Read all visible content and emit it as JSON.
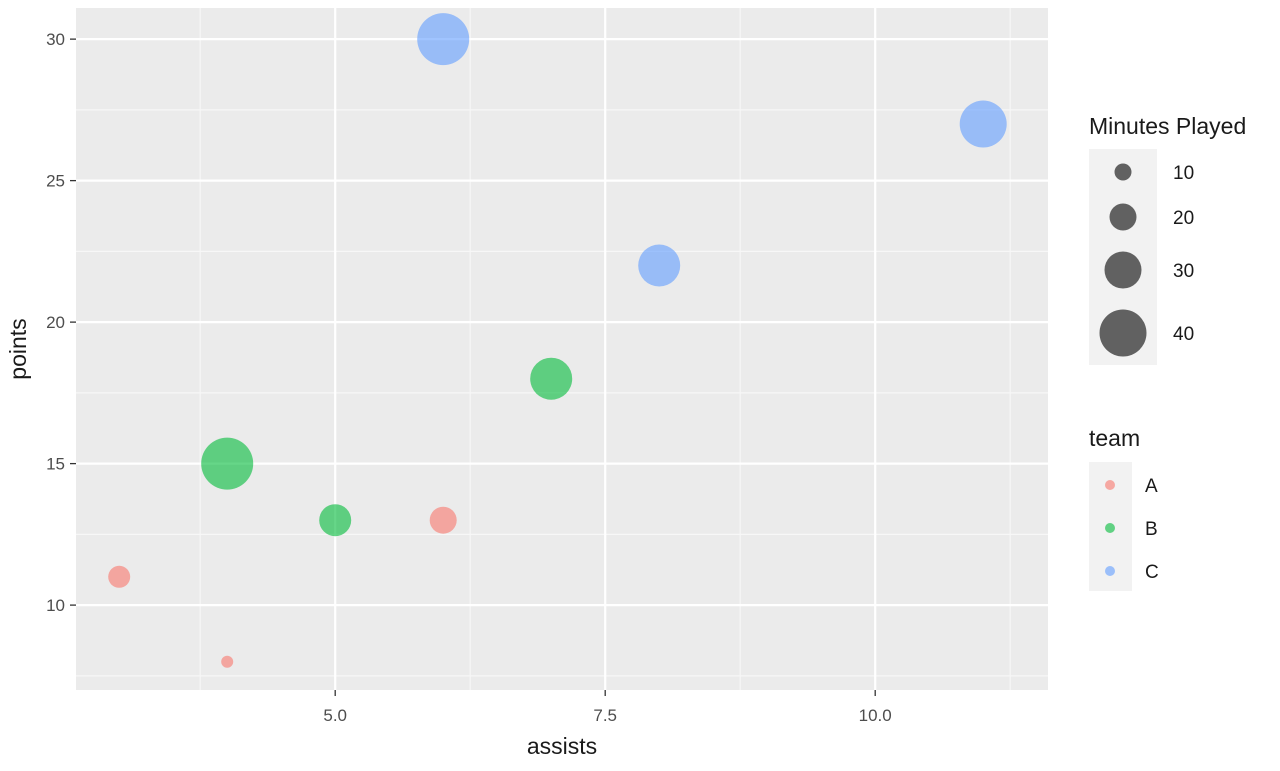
{
  "chart_data": {
    "type": "scatter",
    "xlabel": "assists",
    "ylabel": "points",
    "xlim": [
      2.6,
      11.6
    ],
    "ylim": [
      7,
      31.1
    ],
    "x_ticks": [
      5.0,
      7.5,
      10.0
    ],
    "x_tick_labels": [
      "5.0",
      "7.5",
      "10.0"
    ],
    "x_minor_ticks": [
      3.75,
      6.25,
      8.75,
      11.25
    ],
    "y_ticks": [
      10,
      15,
      20,
      25,
      30
    ],
    "y_tick_labels": [
      "10",
      "15",
      "20",
      "25",
      "30"
    ],
    "y_minor_ticks": [
      7.5,
      12.5,
      17.5,
      22.5,
      27.5
    ],
    "grid": true,
    "panel_background": "#ebebeb",
    "point_alpha": 0.6,
    "size_legend": {
      "title": "Minutes Played",
      "breaks": [
        10,
        20,
        30,
        40
      ],
      "labels": [
        "10",
        "20",
        "30",
        "40"
      ],
      "range": [
        5,
        45
      ]
    },
    "color_legend": {
      "title": "team",
      "entries": [
        {
          "label": "A",
          "color": "#F8766D"
        },
        {
          "label": "B",
          "color": "#00BA38"
        },
        {
          "label": "C",
          "color": "#619CFF"
        }
      ]
    },
    "series": [
      {
        "name": "A",
        "color": "#F8766D",
        "points": [
          {
            "x": 3,
            "y": 11,
            "minutes": 15
          },
          {
            "x": 4,
            "y": 8,
            "minutes": 5
          },
          {
            "x": 6,
            "y": 13,
            "minutes": 20
          }
        ]
      },
      {
        "name": "B",
        "color": "#00BA38",
        "points": [
          {
            "x": 4,
            "y": 15,
            "minutes": 45
          },
          {
            "x": 5,
            "y": 13,
            "minutes": 25
          },
          {
            "x": 7,
            "y": 18,
            "minutes": 35
          }
        ]
      },
      {
        "name": "C",
        "color": "#619CFF",
        "points": [
          {
            "x": 6,
            "y": 30,
            "minutes": 45
          },
          {
            "x": 8,
            "y": 22,
            "minutes": 35
          },
          {
            "x": 11,
            "y": 27,
            "minutes": 40
          }
        ]
      }
    ]
  }
}
